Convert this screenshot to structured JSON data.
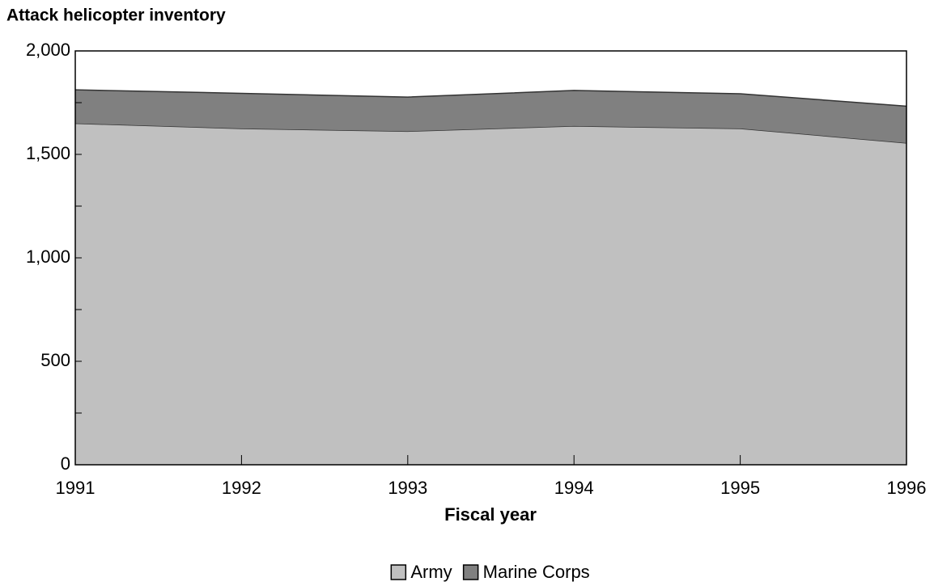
{
  "chart_data": {
    "type": "stacked_area",
    "title": "Attack helicopter inventory",
    "xlabel": "Fiscal year",
    "x": [
      1991,
      1992,
      1993,
      1994,
      1995,
      1996
    ],
    "series": [
      {
        "name": "Army",
        "color": "#c0c0c0",
        "values": [
          1650,
          1625,
          1612,
          1637,
          1625,
          1555
        ]
      },
      {
        "name": "Marine Corps",
        "color": "#808080",
        "values": [
          162,
          170,
          165,
          172,
          168,
          178
        ]
      }
    ],
    "xlim": [
      1991,
      1996
    ],
    "xticks": [
      1991,
      1992,
      1993,
      1994,
      1995,
      1996
    ],
    "ylim": [
      0,
      2000
    ],
    "yticks": [
      0,
      500,
      {
        "value": 1000,
        "label": "1,000"
      },
      {
        "value": 1500,
        "label": "1,500"
      },
      {
        "value": 2000,
        "label": "2,000"
      }
    ],
    "minor_yticks": [
      250,
      750,
      1250,
      1750
    ],
    "legend": "bottom"
  }
}
